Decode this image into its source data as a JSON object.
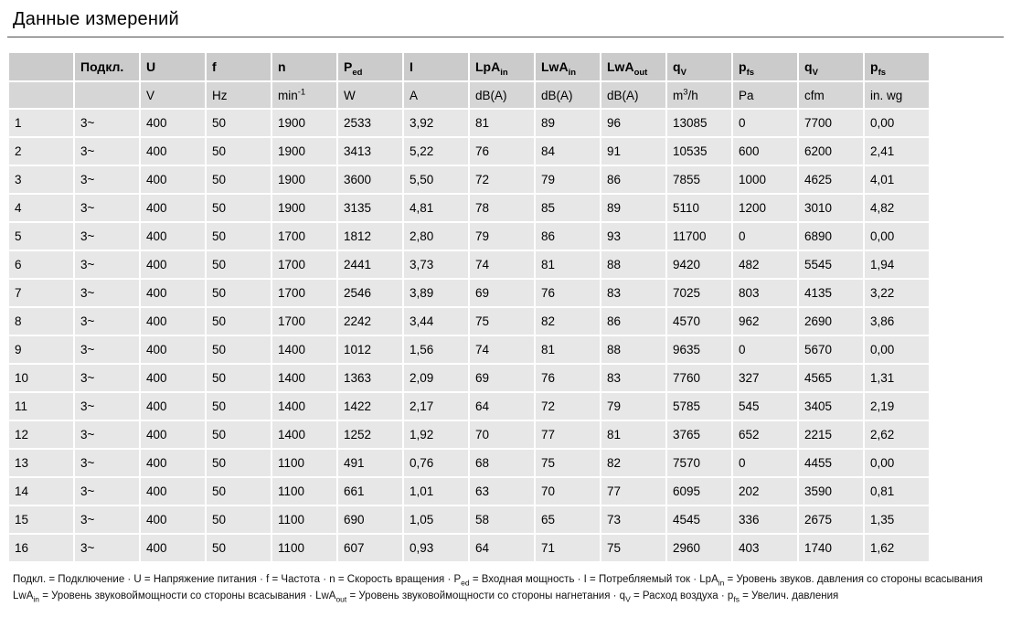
{
  "page": {
    "title": "Данные измерений"
  },
  "table": {
    "header_symbols": [
      {
        "text": ""
      },
      {
        "text": "Подкл."
      },
      {
        "text": "U"
      },
      {
        "text": "f"
      },
      {
        "text": "n"
      },
      {
        "text": "P",
        "sub": "ed"
      },
      {
        "text": "I"
      },
      {
        "text": "LpA",
        "sub": "in"
      },
      {
        "text": "LwA",
        "sub": "in"
      },
      {
        "text": "LwA",
        "sub": "out"
      },
      {
        "text": "q",
        "sub": "V"
      },
      {
        "text": "p",
        "sub": "fs"
      },
      {
        "text": "q",
        "sub": "V"
      },
      {
        "text": "p",
        "sub": "fs"
      }
    ],
    "header_units": [
      {
        "text": ""
      },
      {
        "text": ""
      },
      {
        "text": "V"
      },
      {
        "text": "Hz"
      },
      {
        "text": "min",
        "sup": "-1"
      },
      {
        "text": "W"
      },
      {
        "text": "A"
      },
      {
        "text": "dB(A)"
      },
      {
        "text": "dB(A)"
      },
      {
        "text": "dB(A)"
      },
      {
        "text": "m",
        "sup": "3",
        "after": "/h"
      },
      {
        "text": "Pa"
      },
      {
        "text": "cfm"
      },
      {
        "text": "in. wg"
      }
    ],
    "rows": [
      [
        "1",
        "3~",
        "400",
        "50",
        "1900",
        "2533",
        "3,92",
        "81",
        "89",
        "96",
        "13085",
        "0",
        "7700",
        "0,00"
      ],
      [
        "2",
        "3~",
        "400",
        "50",
        "1900",
        "3413",
        "5,22",
        "76",
        "84",
        "91",
        "10535",
        "600",
        "6200",
        "2,41"
      ],
      [
        "3",
        "3~",
        "400",
        "50",
        "1900",
        "3600",
        "5,50",
        "72",
        "79",
        "86",
        "7855",
        "1000",
        "4625",
        "4,01"
      ],
      [
        "4",
        "3~",
        "400",
        "50",
        "1900",
        "3135",
        "4,81",
        "78",
        "85",
        "89",
        "5110",
        "1200",
        "3010",
        "4,82"
      ],
      [
        "5",
        "3~",
        "400",
        "50",
        "1700",
        "1812",
        "2,80",
        "79",
        "86",
        "93",
        "11700",
        "0",
        "6890",
        "0,00"
      ],
      [
        "6",
        "3~",
        "400",
        "50",
        "1700",
        "2441",
        "3,73",
        "74",
        "81",
        "88",
        "9420",
        "482",
        "5545",
        "1,94"
      ],
      [
        "7",
        "3~",
        "400",
        "50",
        "1700",
        "2546",
        "3,89",
        "69",
        "76",
        "83",
        "7025",
        "803",
        "4135",
        "3,22"
      ],
      [
        "8",
        "3~",
        "400",
        "50",
        "1700",
        "2242",
        "3,44",
        "75",
        "82",
        "86",
        "4570",
        "962",
        "2690",
        "3,86"
      ],
      [
        "9",
        "3~",
        "400",
        "50",
        "1400",
        "1012",
        "1,56",
        "74",
        "81",
        "88",
        "9635",
        "0",
        "5670",
        "0,00"
      ],
      [
        "10",
        "3~",
        "400",
        "50",
        "1400",
        "1363",
        "2,09",
        "69",
        "76",
        "83",
        "7760",
        "327",
        "4565",
        "1,31"
      ],
      [
        "11",
        "3~",
        "400",
        "50",
        "1400",
        "1422",
        "2,17",
        "64",
        "72",
        "79",
        "5785",
        "545",
        "3405",
        "2,19"
      ],
      [
        "12",
        "3~",
        "400",
        "50",
        "1400",
        "1252",
        "1,92",
        "70",
        "77",
        "81",
        "3765",
        "652",
        "2215",
        "2,62"
      ],
      [
        "13",
        "3~",
        "400",
        "50",
        "1100",
        "491",
        "0,76",
        "68",
        "75",
        "82",
        "7570",
        "0",
        "4455",
        "0,00"
      ],
      [
        "14",
        "3~",
        "400",
        "50",
        "1100",
        "661",
        "1,01",
        "63",
        "70",
        "77",
        "6095",
        "202",
        "3590",
        "0,81"
      ],
      [
        "15",
        "3~",
        "400",
        "50",
        "1100",
        "690",
        "1,05",
        "58",
        "65",
        "73",
        "4545",
        "336",
        "2675",
        "1,35"
      ],
      [
        "16",
        "3~",
        "400",
        "50",
        "1100",
        "607",
        "0,93",
        "64",
        "71",
        "75",
        "2960",
        "403",
        "1740",
        "1,62"
      ]
    ]
  },
  "footnotes": [
    [
      {
        "t": "Подкл. = Подключение · U = Напряжение питания · f = Частота · n = Скорость вращения · P"
      },
      {
        "sub": "ed"
      },
      {
        "t": " = Входная мощность · I = Потребляемый ток · LpA"
      },
      {
        "sub": "in"
      },
      {
        "t": " = Уровень звуков. давления со стороны всасывания"
      }
    ],
    [
      {
        "t": "LwA"
      },
      {
        "sub": "in"
      },
      {
        "t": " = Уровень звуковоймощности со стороны всасывания · LwA"
      },
      {
        "sub": "out"
      },
      {
        "t": " = Уровень звуковоймощности со стороны нагнетания · q"
      },
      {
        "sub": "V"
      },
      {
        "t": " = Расход воздуха · p"
      },
      {
        "sub": "fs"
      },
      {
        "t": " = Увелич. давления"
      }
    ]
  ]
}
